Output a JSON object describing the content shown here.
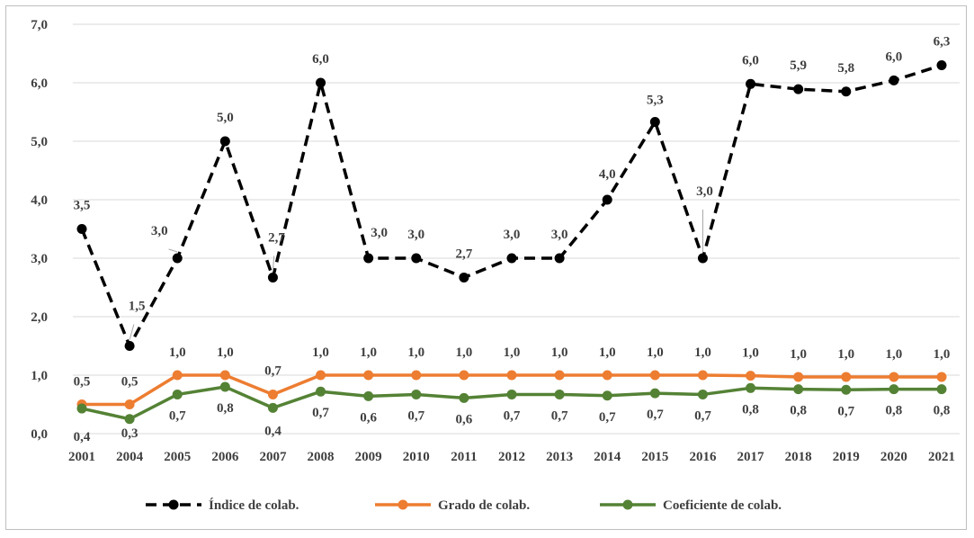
{
  "chart_data": {
    "type": "line",
    "title": "",
    "xlabel": "",
    "ylabel": "",
    "categories": [
      "2001",
      "2004",
      "2005",
      "2006",
      "2007",
      "2008",
      "2009",
      "2010",
      "2011",
      "2012",
      "2013",
      "2014",
      "2015",
      "2016",
      "2017",
      "2018",
      "2019",
      "2020",
      "2021"
    ],
    "ylim": [
      0,
      7
    ],
    "yticks": [
      0,
      1,
      2,
      3,
      4,
      5,
      6,
      7
    ],
    "ytick_labels": [
      "0,0",
      "1,0",
      "2,0",
      "3,0",
      "4,0",
      "5,0",
      "6,0",
      "7,0"
    ],
    "grid": true,
    "legend_position": "bottom",
    "series": [
      {
        "name": "Índice de colab.",
        "color": "#000000",
        "style": "dashed",
        "values": [
          3.5,
          1.5,
          3.0,
          5.0,
          2.67,
          6.0,
          3.0,
          3.0,
          2.67,
          3.0,
          3.0,
          4.0,
          5.33,
          3.0,
          5.98,
          5.89,
          5.85,
          6.04,
          6.3
        ],
        "labels": [
          "3,5",
          "1,5",
          "3,0",
          "5,0",
          "2,7",
          "6,0",
          "3,0",
          "3,0",
          "2,7",
          "3,0",
          "3,0",
          "4,0",
          "5,3",
          "3,0",
          "6,0",
          "5,9",
          "5,8",
          "6,0",
          "6,3"
        ]
      },
      {
        "name": "Grado de colab.",
        "color": "#ed7d31",
        "style": "solid",
        "values": [
          0.5,
          0.5,
          1.0,
          1.0,
          0.67,
          1.0,
          1.0,
          1.0,
          1.0,
          1.0,
          1.0,
          1.0,
          1.0,
          1.0,
          0.99,
          0.97,
          0.97,
          0.97,
          0.97
        ],
        "labels": [
          "0,5",
          "0,5",
          "1,0",
          "1,0",
          "0,7",
          "1,0",
          "1,0",
          "1,0",
          "1,0",
          "1,0",
          "1,0",
          "1,0",
          "1,0",
          "1,0",
          "1,0",
          "1,0",
          "1,0",
          "1,0",
          "1,0"
        ]
      },
      {
        "name": "Coeficiente de colab.",
        "color": "#548235",
        "style": "solid",
        "values": [
          0.43,
          0.25,
          0.67,
          0.8,
          0.44,
          0.72,
          0.64,
          0.67,
          0.61,
          0.67,
          0.67,
          0.65,
          0.69,
          0.67,
          0.78,
          0.76,
          0.75,
          0.76,
          0.76
        ],
        "labels": [
          "0,4",
          "0,3",
          "0,7",
          "0,8",
          "0,4",
          "0,7",
          "0,6",
          "0,7",
          "0,6",
          "0,7",
          "0,7",
          "0,7",
          "0,7",
          "0,7",
          "0,8",
          "0,8",
          "0,7",
          "0,8",
          "0,8"
        ]
      }
    ]
  }
}
